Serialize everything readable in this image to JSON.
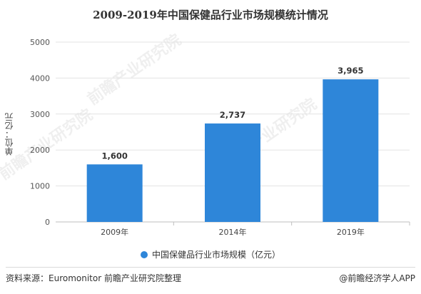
{
  "chart_data": {
    "type": "bar",
    "title": "2009-2019年中国保健品行业市场规模统计情况",
    "ylabel": "单位：亿元",
    "xlabel": "",
    "categories": [
      "2009年",
      "2014年",
      "2019年"
    ],
    "series": [
      {
        "name": "中国保健品行业市场规模（亿元）",
        "values": [
          1600,
          2737,
          3965
        ],
        "labels": [
          "1,600",
          "2,737",
          "3,965"
        ]
      }
    ],
    "ylim": [
      0,
      5000
    ],
    "yticks": [
      0,
      1000,
      2000,
      3000,
      4000,
      5000
    ],
    "grid": true,
    "legend_position": "bottom",
    "bar_color": "#2e86d9"
  },
  "footer": {
    "source": "资料来源：Euromonitor 前瞻产业研究院整理",
    "credit": "@前瞻经济学人APP"
  },
  "watermark": {
    "text": "前瞻产业研究院"
  }
}
